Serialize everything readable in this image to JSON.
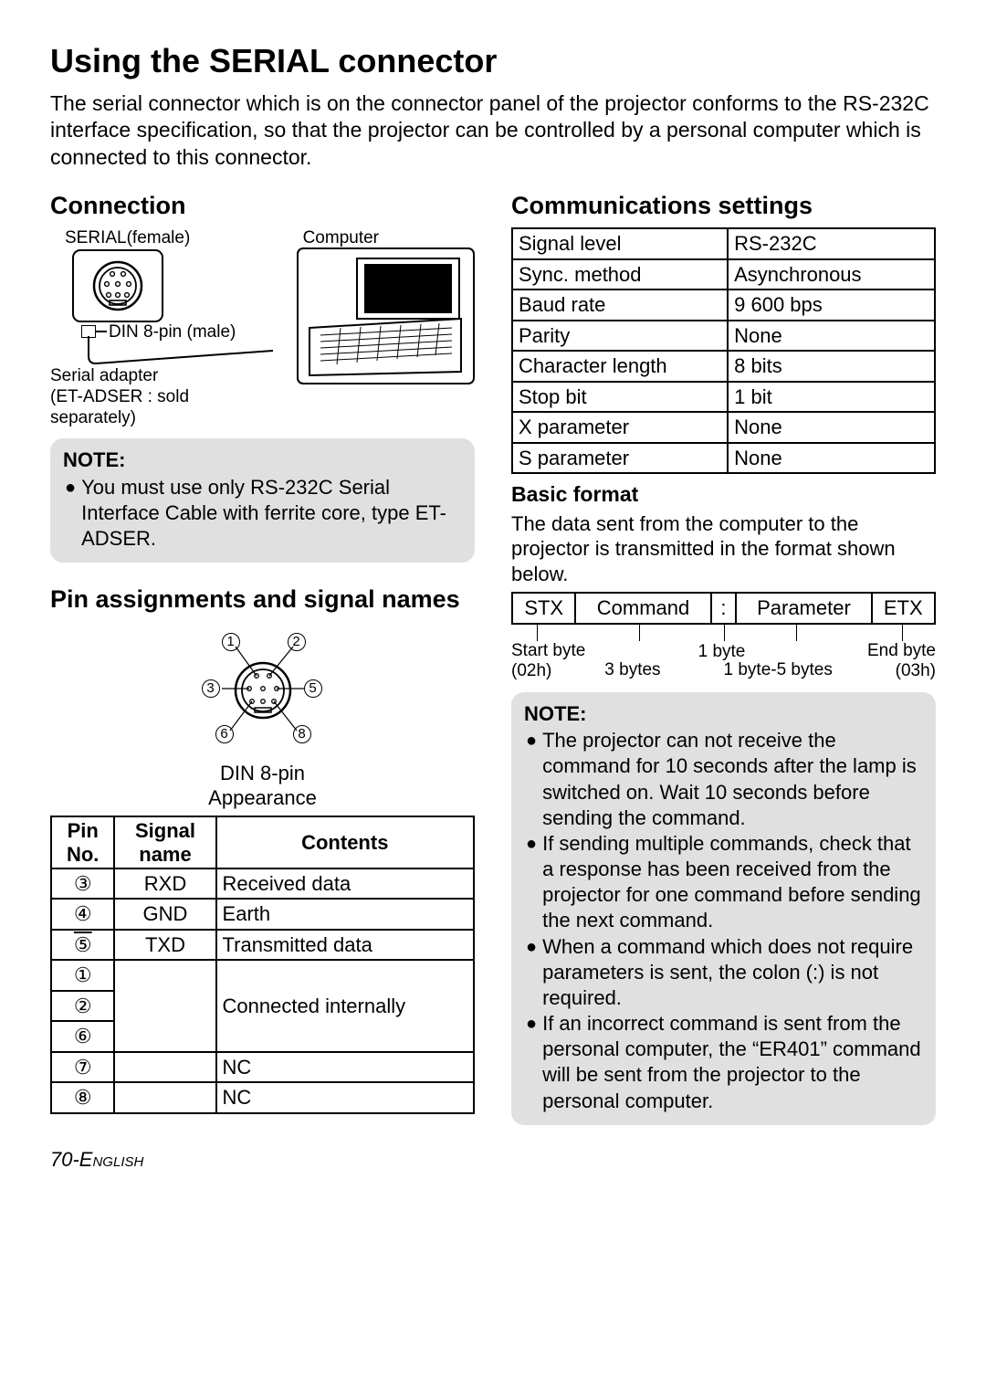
{
  "page_title": "Using the SERIAL connector",
  "intro": "The serial connector which is on the connector panel of the projector conforms to the RS-232C interface specification, so that the projector can be controlled by a personal computer which is connected to this connector.",
  "left": {
    "connection_heading": "Connection",
    "serial_label": "SERIAL(female)",
    "computer_label": "Computer",
    "din_label": "DIN 8-pin (male)",
    "adapter_label": "Serial adapter\n(ET-ADSER : sold\nseparately)",
    "note_heading": "NOTE:",
    "note_bullet": "You must use only RS-232C Serial Interface Cable with ferrite core, type ET-ADSER.",
    "pin_heading": "Pin assignments and signal names",
    "din_appearance": "DIN 8-pin\nAppearance",
    "pin_table": {
      "headers": [
        "Pin\nNo.",
        "Signal\nname",
        "Contents"
      ],
      "rows": [
        {
          "num": "③",
          "signal": "RXD",
          "contents": "Received data"
        },
        {
          "num": "④",
          "signal": "GND",
          "contents": "Earth"
        },
        {
          "num": "⑤",
          "signal": "TXD",
          "contents": "Transmitted data"
        }
      ],
      "group_nums": [
        "①",
        "②",
        "⑥"
      ],
      "group_contents": "Connected internally",
      "nc_rows": [
        {
          "num": "⑦",
          "signal": "",
          "contents": "NC"
        },
        {
          "num": "⑧",
          "signal": "",
          "contents": "NC"
        }
      ]
    }
  },
  "right": {
    "comm_heading": "Communications settings",
    "settings": [
      [
        "Signal level",
        "RS-232C"
      ],
      [
        "Sync. method",
        "Asynchronous"
      ],
      [
        "Baud rate",
        "9 600 bps"
      ],
      [
        "Parity",
        "None"
      ],
      [
        "Character length",
        "8 bits"
      ],
      [
        "Stop bit",
        "1 bit"
      ],
      [
        "X parameter",
        "None"
      ],
      [
        "S parameter",
        "None"
      ]
    ],
    "format_heading": "Basic format",
    "format_text": "The data sent from the computer to the projector is transmitted in the format shown below.",
    "format_cells": [
      "STX",
      "Command",
      ":",
      "Parameter",
      "ETX"
    ],
    "format_ann": {
      "start": "Start byte\n(02h)",
      "cmd": "3 bytes",
      "colon": "1 byte",
      "param": "1 byte-5 bytes",
      "end": "End byte\n(03h)"
    },
    "note_heading": "NOTE:",
    "note_bullets": [
      "The projector can not receive the command for 10 seconds after the lamp is switched on. Wait 10 seconds before sending the command.",
      "If sending multiple commands, check that a response has been received from the projector for one command before sending the next command.",
      "When a command which does not require parameters is sent, the colon (:) is not required.",
      "If an incorrect command is sent from the personal computer, the “ER401” command will be sent from the projector to the personal computer."
    ]
  },
  "footer": {
    "page": "70-",
    "lang": "English"
  },
  "colors": {
    "note_bg": "#e0e0e0",
    "text": "#000000",
    "bg": "#ffffff",
    "border": "#000000"
  }
}
